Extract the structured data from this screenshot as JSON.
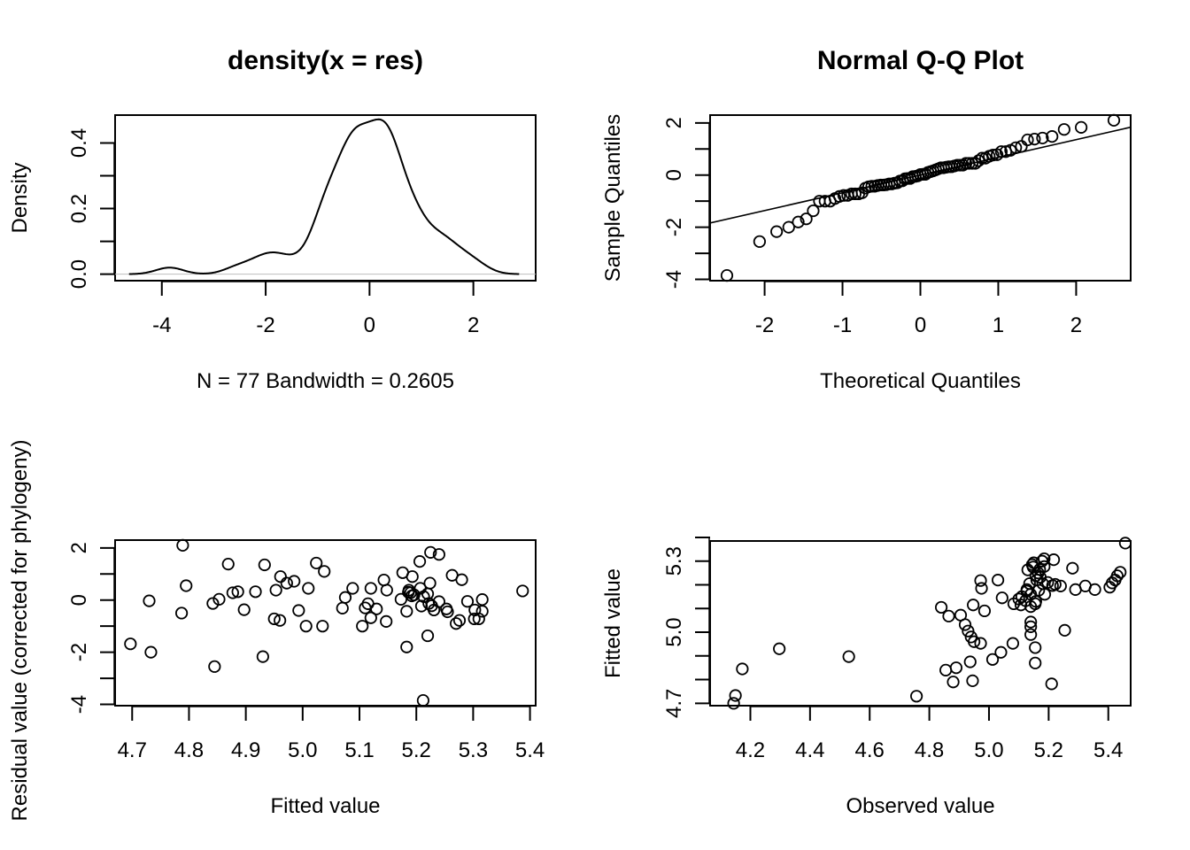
{
  "chart_data": [
    {
      "id": "density",
      "type": "line",
      "title": "density(x = res)",
      "xlabel": "N = 77   Bandwidth = 0.2605",
      "ylabel": "Density",
      "xlim": [
        -4.9,
        3.2
      ],
      "ylim": [
        -0.02,
        0.485
      ],
      "xticks": [
        -4,
        -2,
        0,
        2
      ],
      "xtick_labels": [
        "-4",
        "-2",
        "0",
        "2"
      ],
      "yticks": [
        0.0,
        0.1,
        0.2,
        0.3,
        0.4
      ],
      "ytick_labels": [
        "0.0",
        "",
        "0.2",
        "",
        "0.4"
      ],
      "n": 77,
      "bandwidth": 0.2605,
      "kernel": "gaussian",
      "zero_line_color": "#bebebe",
      "grid": false,
      "source_series": "residuals"
    },
    {
      "id": "qq",
      "type": "scatter",
      "title": "Normal Q-Q Plot",
      "xlabel": "Theoretical Quantiles",
      "ylabel": "Sample Quantiles",
      "xlim": [
        -2.7,
        2.7
      ],
      "ylim": [
        -4.05,
        2.3
      ],
      "xticks": [
        -2,
        -1,
        0,
        1,
        2
      ],
      "xtick_labels": [
        "-2",
        "-1",
        "0",
        "1",
        "2"
      ],
      "yticks": [
        -4,
        -3,
        -2,
        -1,
        0,
        1,
        2
      ],
      "ytick_labels": [
        "-4",
        "",
        "-2",
        "",
        "0",
        "",
        "2"
      ],
      "qqline": {
        "intercept": 0.0,
        "slope": 0.68
      },
      "grid": false,
      "source_series": "residuals"
    },
    {
      "id": "resid-vs-fitted",
      "type": "scatter",
      "title": "",
      "xlabel": "Fitted value",
      "ylabel": "Residual value (corrected for phylogeny)",
      "xlim": [
        4.67,
        5.41
      ],
      "ylim": [
        -4.05,
        2.3
      ],
      "xticks": [
        4.7,
        4.8,
        4.9,
        5.0,
        5.1,
        5.2,
        5.3,
        5.4
      ],
      "xtick_labels": [
        "4.7",
        "4.8",
        "4.9",
        "5.0",
        "5.1",
        "5.2",
        "5.3",
        "5.4"
      ],
      "yticks": [
        -4,
        -3,
        -2,
        -1,
        0,
        1,
        2
      ],
      "ytick_labels": [
        "-4",
        "",
        "-2",
        "",
        "0",
        "",
        "2"
      ],
      "grid": false,
      "points": [
        [
          4.697,
          -1.68
        ],
        [
          4.73,
          -0.03
        ],
        [
          4.733,
          -2.0
        ],
        [
          4.789,
          2.1
        ],
        [
          4.795,
          0.55
        ],
        [
          4.787,
          -0.5
        ],
        [
          4.845,
          -2.55
        ],
        [
          4.842,
          -0.13
        ],
        [
          4.853,
          0.03
        ],
        [
          4.869,
          1.38
        ],
        [
          4.877,
          0.28
        ],
        [
          4.886,
          0.32
        ],
        [
          4.897,
          -0.37
        ],
        [
          4.917,
          0.32
        ],
        [
          4.93,
          -2.17
        ],
        [
          4.933,
          1.35
        ],
        [
          4.95,
          -0.72
        ],
        [
          4.96,
          -0.78
        ],
        [
          4.953,
          0.38
        ],
        [
          4.961,
          0.9
        ],
        [
          4.972,
          0.65
        ],
        [
          4.985,
          0.72
        ],
        [
          4.993,
          -0.4
        ],
        [
          5.006,
          -1.0
        ],
        [
          5.01,
          0.45
        ],
        [
          5.024,
          1.42
        ],
        [
          5.035,
          -1.0
        ],
        [
          5.038,
          1.1
        ],
        [
          5.07,
          -0.31
        ],
        [
          5.075,
          0.1
        ],
        [
          5.088,
          0.45
        ],
        [
          5.105,
          -1.0
        ],
        [
          5.11,
          -0.3
        ],
        [
          5.115,
          -0.14
        ],
        [
          5.12,
          0.45
        ],
        [
          5.12,
          -0.68
        ],
        [
          5.13,
          -0.34
        ],
        [
          5.143,
          0.77
        ],
        [
          5.147,
          -0.82
        ],
        [
          5.148,
          0.38
        ],
        [
          5.173,
          0.03
        ],
        [
          5.176,
          1.05
        ],
        [
          5.183,
          -0.43
        ],
        [
          5.183,
          -1.8
        ],
        [
          5.187,
          0.38
        ],
        [
          5.19,
          0.28
        ],
        [
          5.193,
          0.9
        ],
        [
          5.196,
          0.2
        ],
        [
          5.206,
          1.48
        ],
        [
          5.207,
          0.45
        ],
        [
          5.209,
          -0.23
        ],
        [
          5.212,
          -3.85
        ],
        [
          5.213,
          0.13
        ],
        [
          5.22,
          0.24
        ],
        [
          5.22,
          -1.37
        ],
        [
          5.224,
          0.65
        ],
        [
          5.225,
          1.83
        ],
        [
          5.227,
          -0.22
        ],
        [
          5.231,
          -0.38
        ],
        [
          5.24,
          1.75
        ],
        [
          5.24,
          -0.06
        ],
        [
          5.253,
          -0.34
        ],
        [
          5.255,
          -0.45
        ],
        [
          5.263,
          0.95
        ],
        [
          5.27,
          -0.9
        ],
        [
          5.276,
          -0.78
        ],
        [
          5.28,
          0.78
        ],
        [
          5.29,
          -0.05
        ],
        [
          5.302,
          -0.72
        ],
        [
          5.303,
          -0.38
        ],
        [
          5.31,
          -0.72
        ],
        [
          5.316,
          0.02
        ],
        [
          5.316,
          -0.43
        ],
        [
          5.387,
          0.35
        ],
        [
          5.192,
          0.16
        ],
        [
          5.222,
          -0.13
        ],
        [
          5.186,
          0.3
        ]
      ]
    },
    {
      "id": "fitted-vs-observed",
      "type": "scatter",
      "title": "",
      "xlabel": "Observed value",
      "ylabel": "Fitted value",
      "xlim": [
        4.065,
        5.475
      ],
      "ylim": [
        4.69,
        5.385
      ],
      "xticks": [
        4.2,
        4.4,
        4.6,
        4.8,
        5.0,
        5.2,
        5.4
      ],
      "xtick_labels": [
        "4.2",
        "4.4",
        "4.6",
        "4.8",
        "5.0",
        "5.2",
        "5.4"
      ],
      "yticks": [
        4.7,
        4.8,
        4.9,
        5.0,
        5.1,
        5.2,
        5.3,
        5.4
      ],
      "ytick_labels": [
        "4.7",
        "",
        "",
        "5.0",
        "",
        "",
        "5.3",
        ""
      ],
      "grid": false,
      "points": [
        [
          4.144,
          4.7
        ],
        [
          4.15,
          4.733
        ],
        [
          4.173,
          4.845
        ],
        [
          4.297,
          4.93
        ],
        [
          4.53,
          4.897
        ],
        [
          4.757,
          4.73
        ],
        [
          4.84,
          5.105
        ],
        [
          4.865,
          5.068
        ],
        [
          4.905,
          5.072
        ],
        [
          4.92,
          5.032
        ],
        [
          4.93,
          5.005
        ],
        [
          4.94,
          4.98
        ],
        [
          4.95,
          4.96
        ],
        [
          4.972,
          4.953
        ],
        [
          4.855,
          4.84
        ],
        [
          4.89,
          4.85
        ],
        [
          4.88,
          4.79
        ],
        [
          4.937,
          4.875
        ],
        [
          4.945,
          4.795
        ],
        [
          4.947,
          5.115
        ],
        [
          4.985,
          5.09
        ],
        [
          4.972,
          5.218
        ],
        [
          4.975,
          5.185
        ],
        [
          5.03,
          5.22
        ],
        [
          5.044,
          5.145
        ],
        [
          5.012,
          4.885
        ],
        [
          5.04,
          4.915
        ],
        [
          5.08,
          4.953
        ],
        [
          5.083,
          5.12
        ],
        [
          5.107,
          5.115
        ],
        [
          5.123,
          5.133
        ],
        [
          5.14,
          5.043
        ],
        [
          5.14,
          5.023
        ],
        [
          5.14,
          4.99
        ],
        [
          5.155,
          4.935
        ],
        [
          5.155,
          4.87
        ],
        [
          5.127,
          5.18
        ],
        [
          5.148,
          5.275
        ],
        [
          5.155,
          5.12
        ],
        [
          5.457,
          5.376
        ],
        [
          5.44,
          5.253
        ],
        [
          5.43,
          5.238
        ],
        [
          5.423,
          5.22
        ],
        [
          5.413,
          5.208
        ],
        [
          5.405,
          5.19
        ],
        [
          5.355,
          5.18
        ],
        [
          5.323,
          5.195
        ],
        [
          5.29,
          5.18
        ],
        [
          5.28,
          5.27
        ],
        [
          5.254,
          5.008
        ],
        [
          5.24,
          5.195
        ],
        [
          5.222,
          5.202
        ],
        [
          5.213,
          5.197
        ],
        [
          5.197,
          5.21
        ],
        [
          5.187,
          5.16
        ],
        [
          5.217,
          5.306
        ],
        [
          5.185,
          5.31
        ],
        [
          5.178,
          5.3
        ],
        [
          5.15,
          5.293
        ],
        [
          5.185,
          5.277
        ],
        [
          5.13,
          5.263
        ],
        [
          5.157,
          5.238
        ],
        [
          5.172,
          5.232
        ],
        [
          5.18,
          5.205
        ],
        [
          5.136,
          5.205
        ],
        [
          5.167,
          5.177
        ],
        [
          5.127,
          5.173
        ],
        [
          5.14,
          5.16
        ],
        [
          5.157,
          5.13
        ],
        [
          5.14,
          5.108
        ],
        [
          5.21,
          4.782
        ],
        [
          5.165,
          5.25
        ],
        [
          5.145,
          5.285
        ],
        [
          5.17,
          5.265
        ],
        [
          5.11,
          5.15
        ],
        [
          5.1,
          5.14
        ],
        [
          5.16,
          5.22
        ]
      ]
    }
  ]
}
